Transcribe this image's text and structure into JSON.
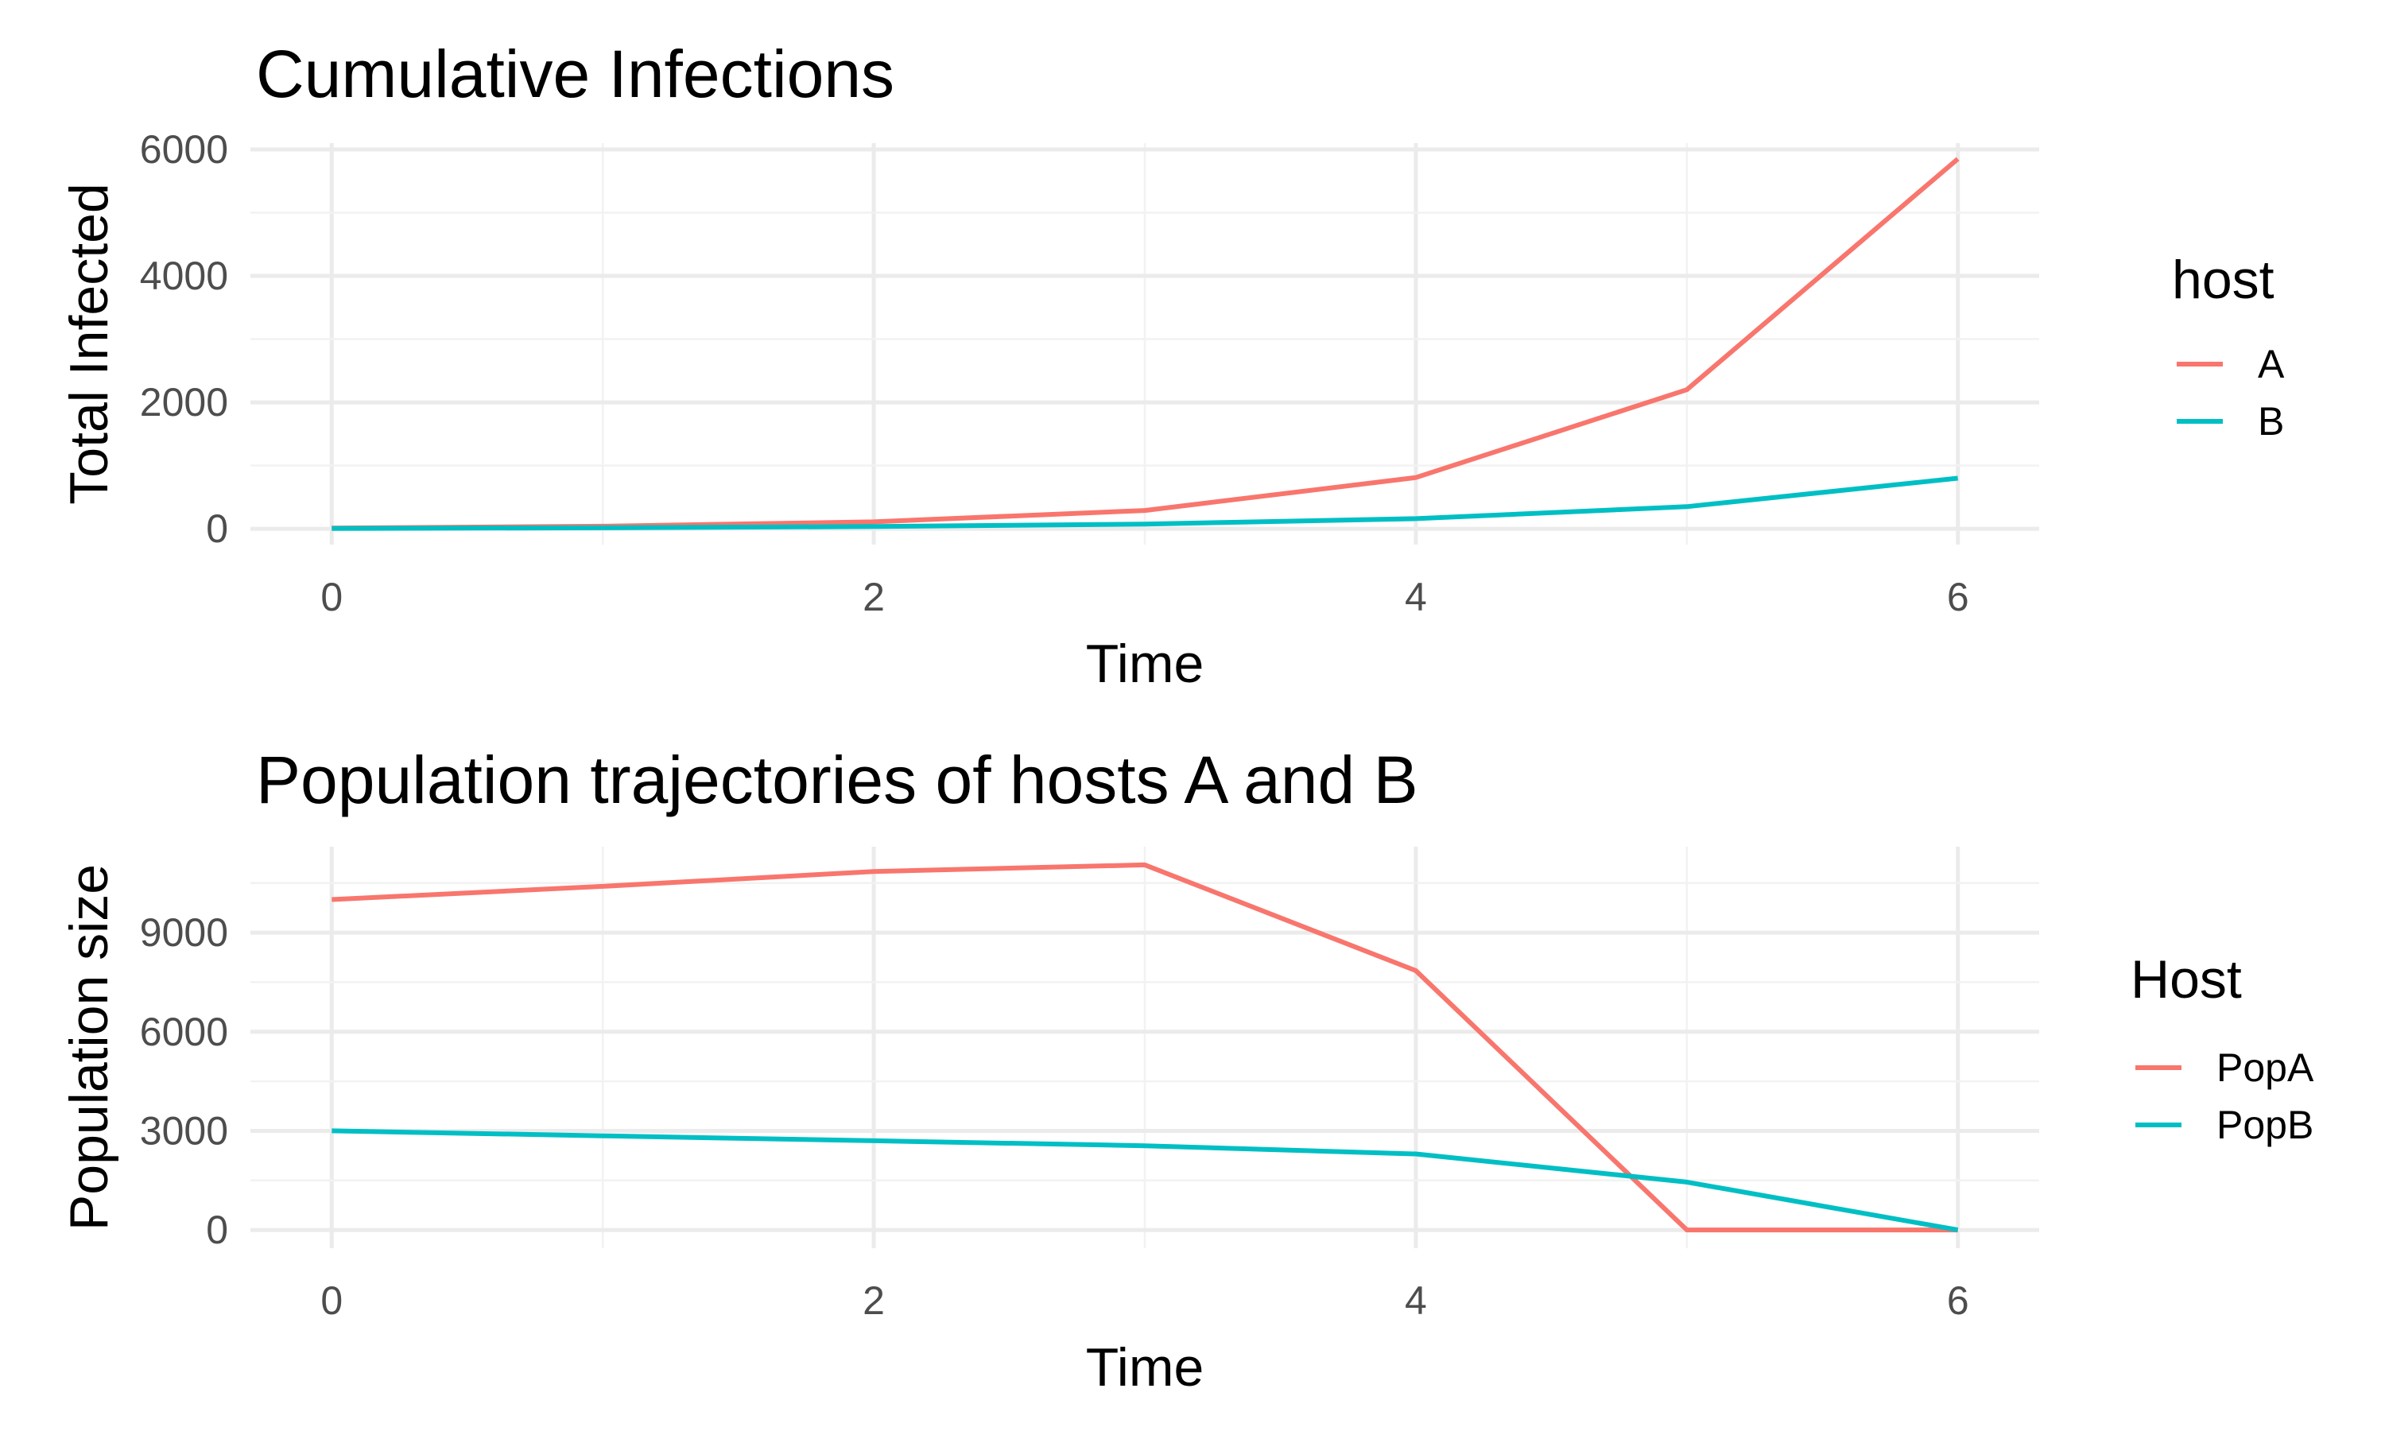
{
  "chart_data": [
    {
      "type": "line",
      "title": "Cumulative Infections",
      "xlabel": "Time",
      "ylabel": "Total Infected",
      "x": [
        0,
        1,
        2,
        3,
        4,
        5,
        6
      ],
      "xlim": [
        -0.3,
        6.3
      ],
      "ylim": [
        -250,
        6100
      ],
      "x_ticks": [
        0,
        2,
        4,
        6
      ],
      "y_ticks": [
        0,
        2000,
        4000,
        6000
      ],
      "grid": true,
      "legend": {
        "title": "host",
        "position": "right"
      },
      "series": [
        {
          "name": "A",
          "color": "#F8766D",
          "values": [
            10,
            40,
            110,
            290,
            810,
            2200,
            5850
          ]
        },
        {
          "name": "B",
          "color": "#00BFC4",
          "values": [
            5,
            15,
            35,
            75,
            160,
            350,
            800
          ]
        }
      ]
    },
    {
      "type": "line",
      "title": "Population trajectories of hosts A and B",
      "xlabel": "Time",
      "ylabel": "Population size",
      "x": [
        0,
        1,
        2,
        3,
        4,
        5,
        6
      ],
      "xlim": [
        -0.3,
        6.3
      ],
      "ylim": [
        -550,
        11600
      ],
      "x_ticks": [
        0,
        2,
        4,
        6
      ],
      "y_ticks": [
        0,
        3000,
        6000,
        9000
      ],
      "grid": true,
      "legend": {
        "title": "Host",
        "position": "right"
      },
      "series": [
        {
          "name": "PopA",
          "color": "#F8766D",
          "values": [
            10000,
            10400,
            10850,
            11050,
            7850,
            0,
            0
          ]
        },
        {
          "name": "PopB",
          "color": "#00BFC4",
          "values": [
            3000,
            2850,
            2700,
            2550,
            2300,
            1450,
            0
          ]
        }
      ]
    }
  ]
}
